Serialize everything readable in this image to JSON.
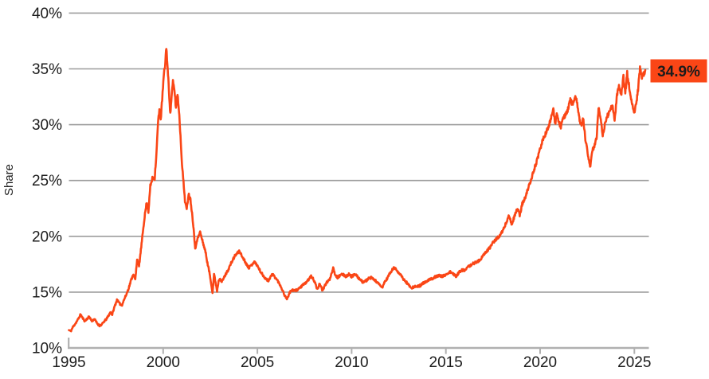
{
  "chart_data": {
    "type": "line",
    "title": "",
    "xlabel": "",
    "ylabel": "Share",
    "legend": "none",
    "grid": "horizontal-only",
    "xlim": [
      1995,
      2025.7
    ],
    "ylim": [
      10,
      40
    ],
    "y_ticks": [
      {
        "v": 10,
        "label": "10%"
      },
      {
        "v": 15,
        "label": "15%"
      },
      {
        "v": 20,
        "label": "20%"
      },
      {
        "v": 25,
        "label": "25%"
      },
      {
        "v": 30,
        "label": "30%"
      },
      {
        "v": 35,
        "label": "35%"
      },
      {
        "v": 40,
        "label": "40%"
      }
    ],
    "x_ticks": [
      {
        "v": 1995,
        "label": "1995"
      },
      {
        "v": 2000,
        "label": "2000"
      },
      {
        "v": 2005,
        "label": "2005"
      },
      {
        "v": 2010,
        "label": "2010"
      },
      {
        "v": 2015,
        "label": "2015"
      },
      {
        "v": 2020,
        "label": "2020"
      },
      {
        "v": 2025,
        "label": "2025"
      }
    ],
    "line_color": "#fa4616",
    "grid_color": "#9c9c9c",
    "axis_color": "#b0b0b0",
    "text_color": "#1c1c1c",
    "end_label": {
      "text": "34.9%",
      "bg": "#fa4616",
      "color": "#ffffff"
    },
    "noise": {
      "seed": 11,
      "step_years": 0.018,
      "relative_amplitude": 0.0065
    },
    "series": [
      {
        "name": "Share",
        "points": [
          [
            1995.0,
            11.6
          ],
          [
            1995.1,
            11.5
          ],
          [
            1995.22,
            11.9
          ],
          [
            1995.35,
            12.2
          ],
          [
            1995.5,
            12.6
          ],
          [
            1995.62,
            13.0
          ],
          [
            1995.72,
            12.7
          ],
          [
            1995.85,
            12.4
          ],
          [
            1995.95,
            12.6
          ],
          [
            1996.08,
            12.8
          ],
          [
            1996.22,
            12.4
          ],
          [
            1996.35,
            12.6
          ],
          [
            1996.5,
            12.2
          ],
          [
            1996.62,
            12.0
          ],
          [
            1996.75,
            12.1
          ],
          [
            1996.88,
            12.4
          ],
          [
            1997.0,
            12.6
          ],
          [
            1997.1,
            12.9
          ],
          [
            1997.2,
            13.2
          ],
          [
            1997.3,
            13.0
          ],
          [
            1997.42,
            13.7
          ],
          [
            1997.55,
            14.3
          ],
          [
            1997.68,
            14.0
          ],
          [
            1997.8,
            13.8
          ],
          [
            1997.92,
            14.3
          ],
          [
            1998.05,
            14.8
          ],
          [
            1998.18,
            15.4
          ],
          [
            1998.3,
            16.1
          ],
          [
            1998.42,
            16.6
          ],
          [
            1998.52,
            16.1
          ],
          [
            1998.62,
            18.0
          ],
          [
            1998.72,
            17.3
          ],
          [
            1998.82,
            18.8
          ],
          [
            1998.92,
            20.3
          ],
          [
            1999.02,
            21.8
          ],
          [
            1999.12,
            23.0
          ],
          [
            1999.22,
            22.2
          ],
          [
            1999.32,
            24.5
          ],
          [
            1999.45,
            25.3
          ],
          [
            1999.55,
            25.2
          ],
          [
            1999.65,
            27.5
          ],
          [
            1999.72,
            30.0
          ],
          [
            1999.8,
            31.3
          ],
          [
            1999.87,
            30.4
          ],
          [
            1999.95,
            32.3
          ],
          [
            2000.03,
            34.3
          ],
          [
            2000.1,
            35.3
          ],
          [
            2000.17,
            37.0
          ],
          [
            2000.24,
            34.9
          ],
          [
            2000.31,
            33.1
          ],
          [
            2000.38,
            30.9
          ],
          [
            2000.45,
            32.6
          ],
          [
            2000.52,
            33.8
          ],
          [
            2000.6,
            33.1
          ],
          [
            2000.68,
            31.5
          ],
          [
            2000.76,
            32.8
          ],
          [
            2000.84,
            31.3
          ],
          [
            2000.92,
            29.0
          ],
          [
            2001.0,
            26.5
          ],
          [
            2001.08,
            24.8
          ],
          [
            2001.16,
            23.2
          ],
          [
            2001.25,
            22.4
          ],
          [
            2001.35,
            23.8
          ],
          [
            2001.45,
            23.3
          ],
          [
            2001.55,
            21.8
          ],
          [
            2001.62,
            20.7
          ],
          [
            2001.7,
            18.8
          ],
          [
            2001.78,
            19.6
          ],
          [
            2001.88,
            20.0
          ],
          [
            2001.96,
            20.4
          ],
          [
            2002.05,
            19.8
          ],
          [
            2002.15,
            19.2
          ],
          [
            2002.25,
            18.6
          ],
          [
            2002.35,
            17.6
          ],
          [
            2002.45,
            16.8
          ],
          [
            2002.55,
            15.8
          ],
          [
            2002.62,
            14.9
          ],
          [
            2002.7,
            16.6
          ],
          [
            2002.78,
            15.9
          ],
          [
            2002.86,
            15.1
          ],
          [
            2002.94,
            16.0
          ],
          [
            2003.02,
            16.3
          ],
          [
            2003.1,
            15.9
          ],
          [
            2003.2,
            16.2
          ],
          [
            2003.32,
            16.6
          ],
          [
            2003.45,
            17.0
          ],
          [
            2003.58,
            17.5
          ],
          [
            2003.7,
            17.9
          ],
          [
            2003.82,
            18.3
          ],
          [
            2003.95,
            18.5
          ],
          [
            2004.05,
            18.7
          ],
          [
            2004.18,
            18.2
          ],
          [
            2004.3,
            17.9
          ],
          [
            2004.42,
            17.5
          ],
          [
            2004.55,
            17.2
          ],
          [
            2004.68,
            17.4
          ],
          [
            2004.8,
            17.7
          ],
          [
            2004.92,
            17.6
          ],
          [
            2005.05,
            17.2
          ],
          [
            2005.18,
            16.8
          ],
          [
            2005.3,
            16.5
          ],
          [
            2005.45,
            16.2
          ],
          [
            2005.58,
            16.0
          ],
          [
            2005.7,
            16.4
          ],
          [
            2005.82,
            16.6
          ],
          [
            2005.95,
            16.3
          ],
          [
            2006.08,
            16.0
          ],
          [
            2006.22,
            15.6
          ],
          [
            2006.35,
            15.1
          ],
          [
            2006.48,
            14.6
          ],
          [
            2006.58,
            14.4
          ],
          [
            2006.7,
            14.9
          ],
          [
            2006.82,
            15.2
          ],
          [
            2006.95,
            15.1
          ],
          [
            2007.1,
            15.2
          ],
          [
            2007.25,
            15.4
          ],
          [
            2007.4,
            15.6
          ],
          [
            2007.55,
            15.8
          ],
          [
            2007.7,
            16.1
          ],
          [
            2007.85,
            16.4
          ],
          [
            2007.95,
            16.2
          ],
          [
            2008.05,
            15.9
          ],
          [
            2008.18,
            15.2
          ],
          [
            2008.3,
            15.8
          ],
          [
            2008.45,
            15.1
          ],
          [
            2008.58,
            15.6
          ],
          [
            2008.7,
            15.9
          ],
          [
            2008.82,
            16.1
          ],
          [
            2008.92,
            16.6
          ],
          [
            2009.02,
            17.2
          ],
          [
            2009.12,
            16.6
          ],
          [
            2009.25,
            16.3
          ],
          [
            2009.4,
            16.5
          ],
          [
            2009.55,
            16.6
          ],
          [
            2009.7,
            16.4
          ],
          [
            2009.85,
            16.6
          ],
          [
            2010.0,
            16.4
          ],
          [
            2010.15,
            16.6
          ],
          [
            2010.3,
            16.4
          ],
          [
            2010.45,
            16.1
          ],
          [
            2010.6,
            15.9
          ],
          [
            2010.75,
            16.0
          ],
          [
            2010.9,
            16.2
          ],
          [
            2011.05,
            16.3
          ],
          [
            2011.2,
            16.1
          ],
          [
            2011.35,
            15.9
          ],
          [
            2011.5,
            15.6
          ],
          [
            2011.62,
            15.4
          ],
          [
            2011.75,
            15.9
          ],
          [
            2011.88,
            16.2
          ],
          [
            2012.0,
            16.6
          ],
          [
            2012.12,
            16.9
          ],
          [
            2012.25,
            17.2
          ],
          [
            2012.38,
            17.0
          ],
          [
            2012.52,
            16.7
          ],
          [
            2012.65,
            16.4
          ],
          [
            2012.78,
            16.1
          ],
          [
            2012.9,
            15.9
          ],
          [
            2013.05,
            15.6
          ],
          [
            2013.2,
            15.4
          ],
          [
            2013.35,
            15.5
          ],
          [
            2013.5,
            15.5
          ],
          [
            2013.65,
            15.6
          ],
          [
            2013.8,
            15.8
          ],
          [
            2013.95,
            15.9
          ],
          [
            2014.1,
            16.1
          ],
          [
            2014.28,
            16.2
          ],
          [
            2014.45,
            16.4
          ],
          [
            2014.62,
            16.5
          ],
          [
            2014.8,
            16.4
          ],
          [
            2014.95,
            16.5
          ],
          [
            2015.1,
            16.7
          ],
          [
            2015.25,
            16.8
          ],
          [
            2015.4,
            16.6
          ],
          [
            2015.55,
            16.4
          ],
          [
            2015.7,
            16.8
          ],
          [
            2015.85,
            17.0
          ],
          [
            2016.0,
            16.9
          ],
          [
            2016.15,
            17.2
          ],
          [
            2016.3,
            17.4
          ],
          [
            2016.48,
            17.6
          ],
          [
            2016.65,
            17.7
          ],
          [
            2016.82,
            17.9
          ],
          [
            2017.0,
            18.3
          ],
          [
            2017.18,
            18.7
          ],
          [
            2017.35,
            19.0
          ],
          [
            2017.52,
            19.5
          ],
          [
            2017.7,
            19.8
          ],
          [
            2017.88,
            20.1
          ],
          [
            2018.05,
            20.6
          ],
          [
            2018.2,
            21.2
          ],
          [
            2018.35,
            21.9
          ],
          [
            2018.5,
            21.0
          ],
          [
            2018.65,
            21.9
          ],
          [
            2018.8,
            22.5
          ],
          [
            2018.92,
            21.9
          ],
          [
            2019.05,
            22.9
          ],
          [
            2019.2,
            23.4
          ],
          [
            2019.35,
            24.2
          ],
          [
            2019.5,
            25.0
          ],
          [
            2019.65,
            25.8
          ],
          [
            2019.8,
            26.6
          ],
          [
            2019.95,
            27.5
          ],
          [
            2020.08,
            28.3
          ],
          [
            2020.2,
            28.9
          ],
          [
            2020.32,
            29.3
          ],
          [
            2020.45,
            29.8
          ],
          [
            2020.58,
            30.6
          ],
          [
            2020.7,
            31.3
          ],
          [
            2020.8,
            30.1
          ],
          [
            2020.9,
            31.0
          ],
          [
            2021.0,
            30.2
          ],
          [
            2021.1,
            29.8
          ],
          [
            2021.22,
            30.5
          ],
          [
            2021.35,
            30.9
          ],
          [
            2021.48,
            31.4
          ],
          [
            2021.6,
            32.2
          ],
          [
            2021.72,
            31.8
          ],
          [
            2021.85,
            32.5
          ],
          [
            2021.95,
            32.1
          ],
          [
            2022.08,
            30.6
          ],
          [
            2022.18,
            29.9
          ],
          [
            2022.28,
            30.6
          ],
          [
            2022.4,
            28.7
          ],
          [
            2022.52,
            27.5
          ],
          [
            2022.65,
            26.2
          ],
          [
            2022.78,
            27.7
          ],
          [
            2022.88,
            28.1
          ],
          [
            2023.0,
            28.9
          ],
          [
            2023.1,
            31.6
          ],
          [
            2023.22,
            30.4
          ],
          [
            2023.32,
            29.1
          ],
          [
            2023.45,
            30.1
          ],
          [
            2023.58,
            30.8
          ],
          [
            2023.72,
            31.4
          ],
          [
            2023.85,
            31.7
          ],
          [
            2023.95,
            30.4
          ],
          [
            2024.08,
            32.6
          ],
          [
            2024.2,
            33.5
          ],
          [
            2024.3,
            32.5
          ],
          [
            2024.42,
            34.3
          ],
          [
            2024.52,
            32.8
          ],
          [
            2024.62,
            34.6
          ],
          [
            2024.75,
            33.2
          ],
          [
            2024.88,
            31.8
          ],
          [
            2025.0,
            31.0
          ],
          [
            2025.1,
            31.9
          ],
          [
            2025.2,
            33.2
          ],
          [
            2025.3,
            35.1
          ],
          [
            2025.4,
            34.2
          ],
          [
            2025.48,
            34.5
          ],
          [
            2025.58,
            34.9
          ]
        ]
      }
    ]
  }
}
